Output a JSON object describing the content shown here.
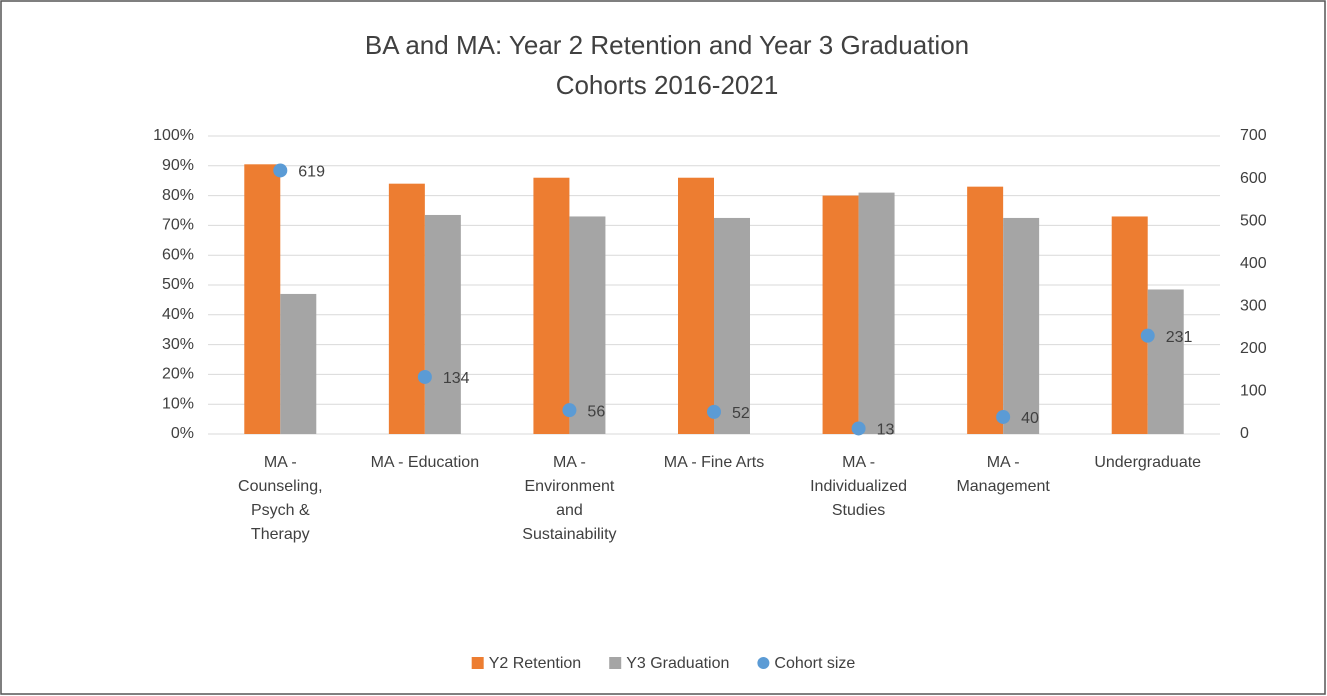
{
  "chart_data": {
    "type": "bar",
    "title": [
      "BA and MA: Year 2 Retention and Year 3 Graduation",
      "Cohorts 2016-2021"
    ],
    "categories": [
      "MA - Counseling, Psych & Therapy",
      "MA - Education",
      "MA - Environment and Sustainability",
      "MA - Fine Arts",
      "MA - Individualized Studies",
      "MA - Management",
      "Undergraduate"
    ],
    "series": [
      {
        "name": "Y2 Retention",
        "color": "#ed7d31",
        "type": "bar",
        "values": [
          90.5,
          84,
          86,
          86,
          80,
          83,
          73
        ]
      },
      {
        "name": "Y3 Graduation",
        "color": "#a5a5a5",
        "type": "bar",
        "values": [
          47,
          73.5,
          73,
          72.5,
          81,
          72.5,
          48.5
        ]
      },
      {
        "name": "Cohort size",
        "color": "#5b9bd5",
        "type": "scatter",
        "axis": "y2",
        "data_labels": true,
        "values": [
          619,
          134,
          56,
          52,
          13,
          40,
          231
        ]
      }
    ],
    "ylim": [
      0,
      100
    ],
    "yticks": [
      {
        "value": 0,
        "label": "0%"
      },
      {
        "value": 10,
        "label": "10%"
      },
      {
        "value": 20,
        "label": "20%"
      },
      {
        "value": 30,
        "label": "30%"
      },
      {
        "value": 40,
        "label": "40%"
      },
      {
        "value": 50,
        "label": "50%"
      },
      {
        "value": 60,
        "label": "60%"
      },
      {
        "value": 70,
        "label": "70%"
      },
      {
        "value": 80,
        "label": "80%"
      },
      {
        "value": 90,
        "label": "90%"
      },
      {
        "value": 100,
        "label": "100%"
      }
    ],
    "y2lim": [
      0,
      700
    ],
    "y2ticks": [
      0,
      100,
      200,
      300,
      400,
      500,
      600,
      700
    ],
    "grid": true,
    "legend": "bottom"
  }
}
